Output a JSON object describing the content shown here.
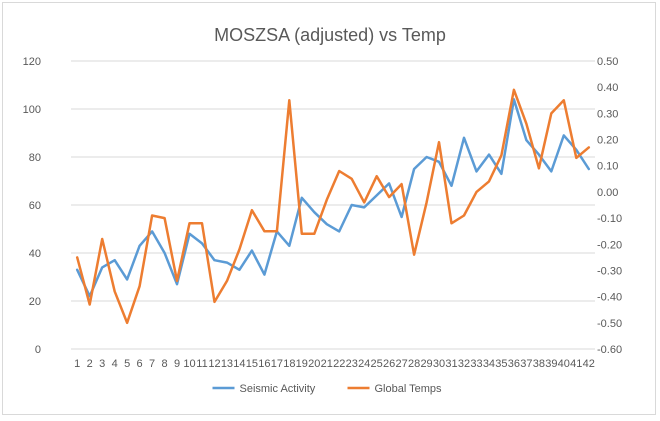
{
  "chart_data": {
    "type": "line",
    "title": "MOSZSA (adjusted) vs Temp",
    "x": [
      "1",
      "2",
      "3",
      "4",
      "5",
      "6",
      "7",
      "8",
      "9",
      "10",
      "11",
      "12",
      "13",
      "14",
      "15",
      "16",
      "17",
      "18",
      "19",
      "20",
      "21",
      "22",
      "23",
      "24",
      "25",
      "26",
      "27",
      "28",
      "29",
      "30",
      "31",
      "32",
      "33",
      "34",
      "35",
      "36",
      "37",
      "38",
      "39",
      "40",
      "41",
      "42"
    ],
    "y_left": {
      "range": [
        0,
        120
      ],
      "ticks": [
        "0",
        "20",
        "40",
        "60",
        "80",
        "100",
        "120"
      ]
    },
    "y_right": {
      "range": [
        -0.6,
        0.5
      ],
      "ticks": [
        "-0.60",
        "-0.50",
        "-0.40",
        "-0.30",
        "-0.20",
        "-0.10",
        "0.00",
        "0.10",
        "0.20",
        "0.30",
        "0.40",
        "0.50"
      ]
    },
    "grid": true,
    "legend_position": "bottom",
    "series": [
      {
        "name": "Seismic Activity",
        "axis": "left",
        "color": "#5B9BD5",
        "values": [
          33,
          22,
          34,
          37,
          29,
          43,
          49,
          40,
          27,
          48,
          44,
          37,
          36,
          33,
          41,
          31,
          49,
          43,
          63,
          57,
          52,
          49,
          60,
          59,
          64,
          69,
          55,
          75,
          80,
          78,
          68,
          88,
          74,
          81,
          73,
          104,
          87,
          81,
          74,
          89,
          83,
          75
        ]
      },
      {
        "name": "Global Temps",
        "axis": "right",
        "color": "#ED7D31",
        "values": [
          -0.25,
          -0.43,
          -0.18,
          -0.38,
          -0.5,
          -0.36,
          -0.09,
          -0.1,
          -0.34,
          -0.12,
          -0.12,
          -0.42,
          -0.34,
          -0.22,
          -0.07,
          -0.15,
          -0.15,
          0.35,
          -0.16,
          -0.16,
          -0.03,
          0.08,
          0.05,
          -0.04,
          0.06,
          -0.02,
          0.03,
          -0.24,
          -0.04,
          0.19,
          -0.12,
          -0.09,
          0.0,
          0.04,
          0.14,
          0.39,
          0.26,
          0.09,
          0.3,
          0.35,
          0.13,
          0.17
        ]
      }
    ]
  }
}
